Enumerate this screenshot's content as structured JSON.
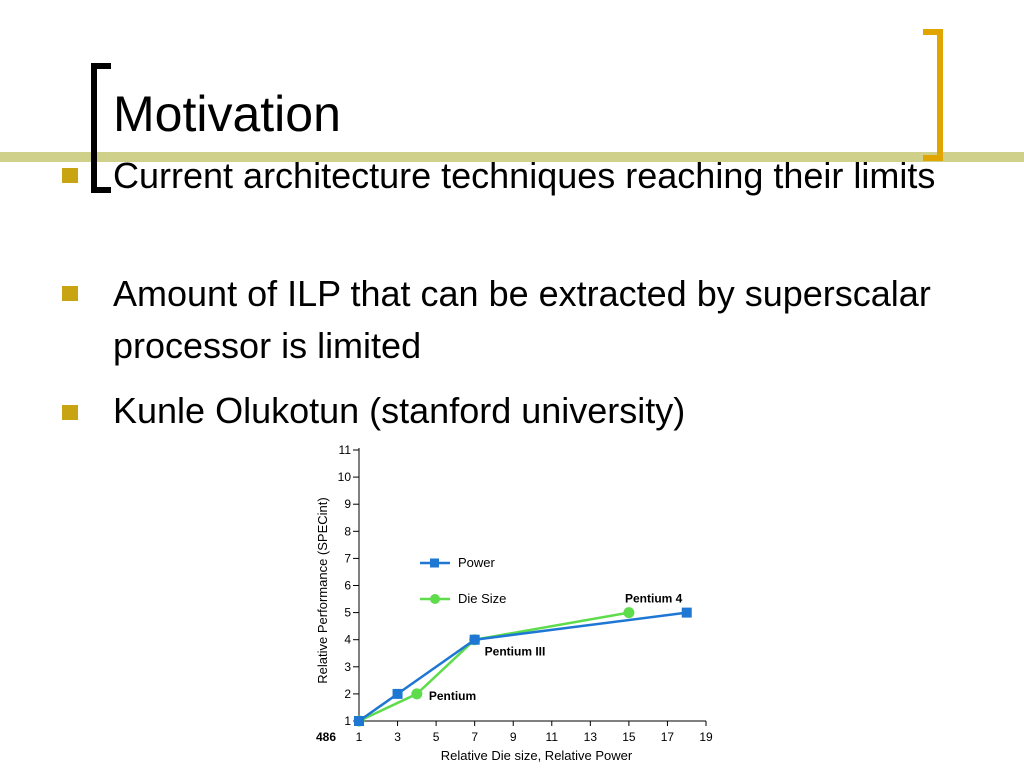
{
  "slide": {
    "title": "Motivation",
    "bullets": [
      "Current architecture techniques reaching their limits",
      "Amount of ILP that can be extracted by superscalar processor is limited",
      "Kunle Olukotun (stanford university)"
    ]
  },
  "colors": {
    "accent_bar": "#cfd08a",
    "bracket_right": "#e0a500",
    "bullet": "#c9a412",
    "power": "#1f77d4",
    "die_size": "#5fdc4c"
  },
  "chart_data": {
    "type": "line",
    "xlabel": "Relative Die size, Relative Power",
    "ylabel": "Relative Performance (SPECint)",
    "xlim": [
      1,
      19
    ],
    "ylim": [
      1,
      11
    ],
    "x_ticks": [
      "1",
      "3",
      "5",
      "7",
      "9",
      "11",
      "13",
      "15",
      "17",
      "19"
    ],
    "y_ticks": [
      "1",
      "2",
      "3",
      "4",
      "5",
      "6",
      "7",
      "8",
      "9",
      "10",
      "11"
    ],
    "x_origin_label": "486",
    "grid": false,
    "legend_position": "center",
    "series": [
      {
        "name": "Power",
        "marker": "square",
        "x": [
          1,
          3,
          7,
          18
        ],
        "y": [
          1,
          2,
          4,
          5
        ]
      },
      {
        "name": "Die Size",
        "marker": "circle",
        "x": [
          1,
          4,
          7,
          15
        ],
        "y": [
          1,
          2,
          4,
          5
        ]
      }
    ],
    "annotations": [
      {
        "text": "Pentium",
        "x": 4,
        "y": 2
      },
      {
        "text": "Pentium III",
        "x": 7,
        "y": 4
      },
      {
        "text": "Pentium 4",
        "x": 15,
        "y": 5
      }
    ]
  }
}
